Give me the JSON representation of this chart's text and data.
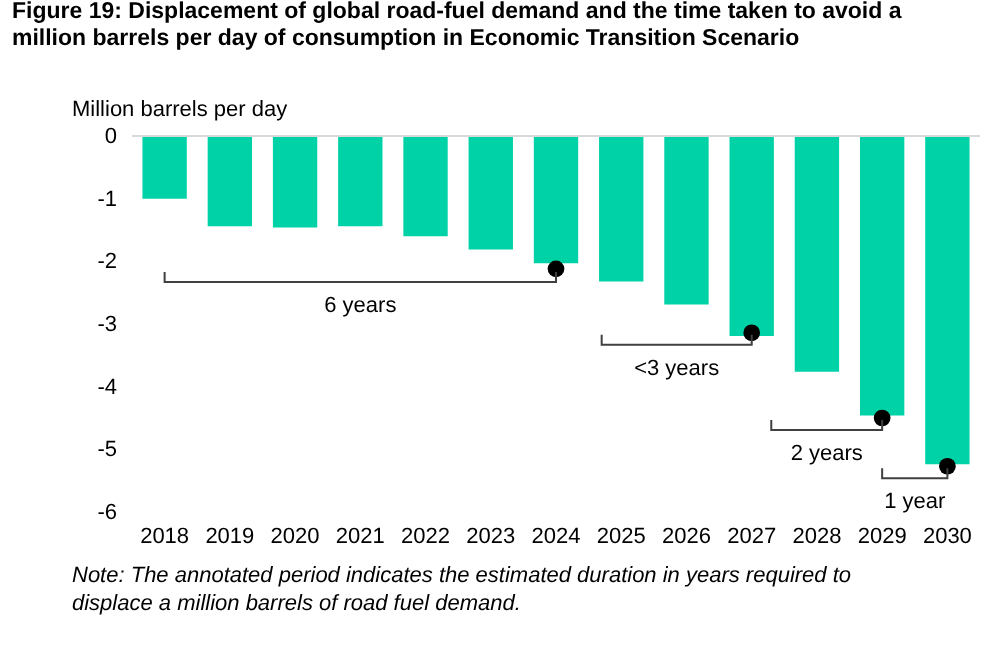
{
  "chart_data": {
    "type": "bar",
    "title": "Figure 19: Displacement of global road-fuel demand and the time taken to avoid a million barrels per day of consumption in Economic Transition Scenario",
    "ylabel": "Million barrels per day",
    "categories": [
      "2018",
      "2019",
      "2020",
      "2021",
      "2022",
      "2023",
      "2024",
      "2025",
      "2026",
      "2027",
      "2028",
      "2029",
      "2030"
    ],
    "series": [
      {
        "color": "#00d2a8",
        "values": [
          -1.0,
          -1.44,
          -1.46,
          -1.44,
          -1.6,
          -1.81,
          -2.03,
          -2.32,
          -2.69,
          -3.19,
          -3.76,
          -4.46,
          -5.24
        ]
      },
      {
        "type": "scatter",
        "color": "#000000",
        "values": [
          null,
          null,
          null,
          null,
          null,
          null,
          -2.12,
          null,
          null,
          -3.14,
          null,
          -4.5,
          -5.27
        ]
      }
    ],
    "annotations": [
      "6 years",
      {
        "text": "<3 years",
        "x": "2027",
        "y": -3.14
      },
      {
        "text": "2 years",
        "x": "2029",
        "y": -4.5
      },
      {
        "text": "1 year",
        "x": "2030",
        "y": -5.27
      },
      "Note: The annotated period indicates the estimated duration in years required to displace a million barrels of road fuel demand."
    ],
    "ylim": [
      -6,
      0
    ],
    "yticks": [
      -6,
      -5,
      -4,
      -3,
      -2,
      -1,
      0
    ],
    "marker": "circle"
  }
}
